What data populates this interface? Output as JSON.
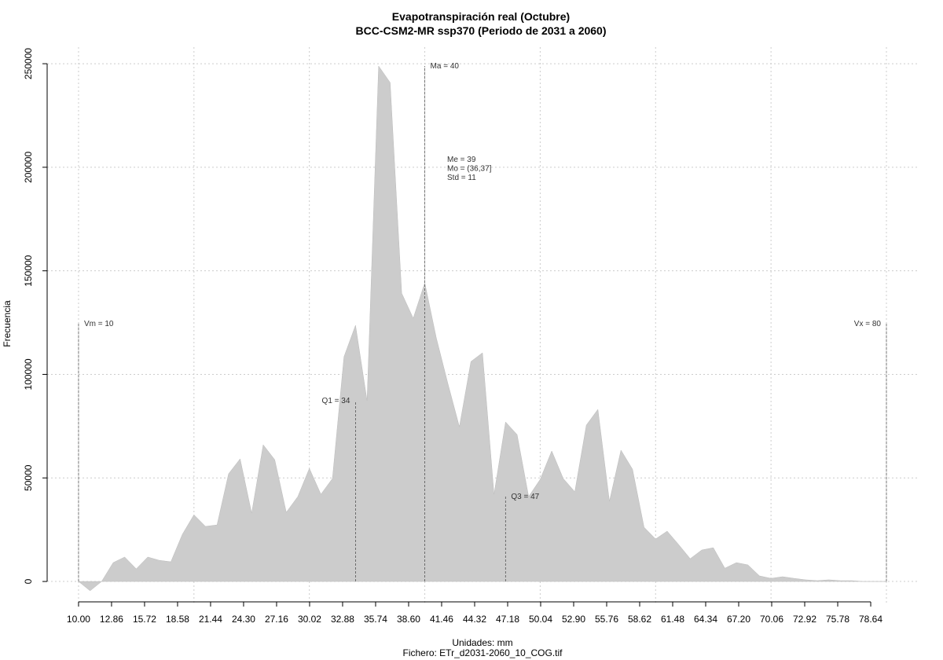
{
  "chart_data": {
    "type": "area",
    "title": "Evapotranspiración real (Octubre)",
    "subtitle": "BCC-CSM2-MR ssp370 (Periodo de 2031 a 2060)",
    "x_label": "Unidades: mm",
    "caption": "Fichero: ETr_d2031-2060_10_COG.tif",
    "y_label": "Frecuencia",
    "color": "#cccccc",
    "x": [
      10,
      11,
      12,
      13,
      14,
      15,
      16,
      17,
      18,
      19,
      20,
      21,
      22,
      23,
      24,
      25,
      26,
      27,
      28,
      29,
      30,
      31,
      32,
      33,
      34,
      35,
      36,
      37,
      38,
      39,
      40,
      41,
      42,
      43,
      44,
      45,
      46,
      47,
      48,
      49,
      50,
      51,
      52,
      53,
      54,
      55,
      56,
      57,
      58,
      59,
      60,
      61,
      62,
      63,
      64,
      65,
      66,
      67,
      68,
      69,
      70,
      71,
      72,
      73,
      74,
      75,
      76,
      77,
      78,
      79,
      80
    ],
    "values": [
      0,
      -4500,
      0,
      9100,
      11800,
      6100,
      11800,
      10200,
      9500,
      22800,
      32200,
      26600,
      27300,
      52000,
      59200,
      33000,
      66000,
      58800,
      33400,
      41000,
      54600,
      42100,
      49700,
      108500,
      123700,
      87300,
      248900,
      240900,
      139200,
      127100,
      144200,
      117600,
      95600,
      74700,
      106200,
      110400,
      42100,
      77000,
      70900,
      41000,
      49300,
      63000,
      49700,
      43300,
      75500,
      83100,
      38700,
      63400,
      54200,
      26200,
      20500,
      24300,
      17800,
      11000,
      15200,
      16300,
      6400,
      9100,
      8000,
      2700,
      1500,
      2300,
      1500,
      800,
      400,
      800,
      400,
      400,
      0,
      0,
      0
    ],
    "xlim": [
      7.28,
      82.86
    ],
    "ylim": [
      -10600,
      258000
    ],
    "xticks": [
      {
        "value": 10,
        "label": "10.00"
      },
      12.86,
      15.72,
      18.58,
      21.44,
      {
        "value": 24.3,
        "label": "24.30"
      },
      27.16,
      30.02,
      32.88,
      35.74,
      {
        "value": 38.6,
        "label": "38.60"
      },
      41.46,
      44.32,
      47.18,
      50.04,
      {
        "value": 52.9,
        "label": "52.90"
      },
      55.76,
      58.62,
      61.48,
      64.34,
      {
        "value": 67.2,
        "label": "67.20"
      },
      70.06,
      72.92,
      75.78,
      78.64
    ],
    "yticks": [
      0,
      50000,
      100000,
      150000,
      200000,
      250000
    ],
    "xgrid": [
      10,
      20,
      30,
      40,
      50,
      60,
      70,
      80
    ],
    "grid": true,
    "stats": [
      {
        "label": "Vm = 10",
        "value": 10
      },
      {
        "label": "Q1 = 34",
        "value": 34
      },
      {
        "label": "Ma = 40",
        "value": 40
      },
      {
        "label": "Q3 = 47",
        "value": 47
      },
      {
        "label": "Vx = 80",
        "value": 80
      }
    ],
    "annotations": [
      "Me = 39",
      "Mo = (36,37]",
      "Std = 11"
    ]
  }
}
